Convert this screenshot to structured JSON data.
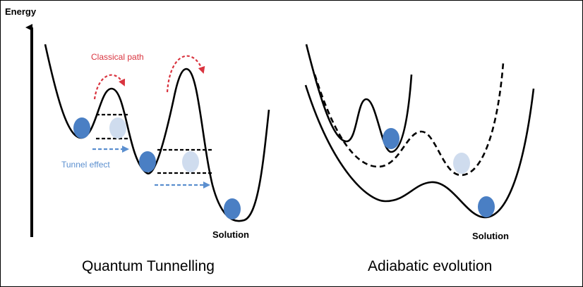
{
  "labels": {
    "energy_axis": "Energy",
    "classical_path": "Classical path",
    "tunnel_effect": "Tunnel effect",
    "solution_left": "Solution",
    "solution_right": "Solution"
  },
  "captions": {
    "left": "Quantum Tunnelling",
    "right": "Adiabatic evolution"
  },
  "colors": {
    "curve": "#000000",
    "classical_path": "#d9343f",
    "tunnel_arrow": "#5b8fcf",
    "state_filled": "#4a7fc4",
    "state_ghost": "#cfdcee"
  }
}
